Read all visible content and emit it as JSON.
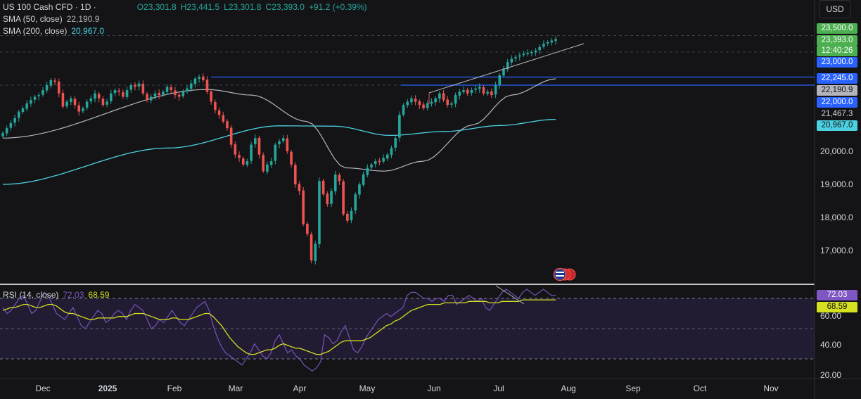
{
  "header": {
    "symbol": "US 100 Cash CFD · 1D ·",
    "open": "O23,301.8",
    "high": "H23,441.5",
    "low": "L23,301.8",
    "close": "C23,393.0",
    "change": "+91.2 (+0.39%)",
    "currency": "USD"
  },
  "indicators": {
    "sma50_label": "SMA (50, close)",
    "sma50_value": "22,190.9",
    "sma200_label": "SMA (200, close)",
    "sma200_value": "20,967.0",
    "rsi_label": "RSI (14, close)",
    "rsi_value": "72.03",
    "rsi_ma_value": "68.59"
  },
  "price_tags": {
    "p23500": "23,500.0",
    "last": "23,393.0",
    "countdown": "12:40:26",
    "p23000": "23,000.0",
    "p22245": "22,245.0",
    "sma50": "22,190.9",
    "p22000": "22,000.0",
    "p21467": "21,467.3",
    "sma200": "20,967.0",
    "rsi": "72.03",
    "rsi_ma": "68.59"
  },
  "price_axis": [
    "20,000.0",
    "19,000.0",
    "18,000.0",
    "17,000.0"
  ],
  "rsi_axis": [
    "60.00",
    "40.00",
    "20.00"
  ],
  "time_axis": [
    "Dec",
    "2025",
    "Feb",
    "Mar",
    "Apr",
    "May",
    "Jun",
    "Jul",
    "Aug",
    "Sep",
    "Oct",
    "Nov"
  ],
  "colors": {
    "up": "#26a69a",
    "down": "#ef5350",
    "sma50": "#b2b5be",
    "sma200": "#4dd0e1",
    "hline": "#2962ff",
    "rsi": "#7e57c2",
    "rsi_ma": "#d4e020",
    "last_price": "#4caf50"
  },
  "chart_data": {
    "type": "candlestick",
    "instrument": "US 100 Cash CFD",
    "timeframe": "1D",
    "x_range": [
      "Nov 2024",
      "Jul 2025"
    ],
    "y_range": [
      16300,
      23600
    ],
    "close_path": [
      [
        20550,
        20700,
        20850,
        21000,
        21200,
        21300,
        21450,
        21550,
        21650,
        21700,
        21850,
        22000,
        22150,
        22100,
        21750,
        21350,
        21500,
        21600,
        21400,
        21200,
        21300,
        21500,
        21600,
        21750,
        21600,
        21400,
        21500,
        21750,
        21850,
        21800,
        21650,
        21850,
        22000,
        21950,
        22050,
        21750,
        21550,
        21650,
        21750,
        21700,
        21800,
        21950,
        21850,
        21700,
        21650,
        21800,
        21900,
        22050,
        22200,
        22250,
        22150,
        21800,
        21500,
        21250,
        21100,
        20900,
        20700,
        20200,
        19900,
        19800,
        19600,
        19700,
        20200,
        20400,
        19900,
        19400,
        19600,
        19700,
        20200,
        20300,
        20400,
        20000,
        19600,
        19000,
        18800,
        17800,
        17500,
        16700,
        17200,
        19100,
        18700,
        18400,
        18800,
        19300,
        19100,
        18100,
        17900,
        18200,
        18700,
        19000,
        19300,
        19500,
        19600,
        19700,
        19700,
        19800,
        19900,
        20100,
        20400,
        21100,
        21400,
        21500,
        21600,
        21500,
        21400,
        21300,
        21450,
        21500,
        21600,
        21750,
        21550,
        21400,
        21450,
        21700,
        21800,
        21850,
        21750,
        21850,
        21900,
        21950,
        21750,
        21800,
        21700,
        22000,
        22300,
        22500,
        22700,
        22800,
        22850,
        22900,
        22950,
        22980,
        23000,
        23050,
        23150,
        23250,
        23300,
        23350,
        23393
      ]
    ],
    "sma50": {
      "start": 20400,
      "peak_feb": 21870,
      "low_may": 19400,
      "end": 22190.9
    },
    "sma200": {
      "start": 19000,
      "mid_mar": 20770,
      "may": 20480,
      "end": 20967
    },
    "levels": [
      22245,
      22000
    ],
    "rsi": {
      "last": 72.03,
      "ma_last": 68.59,
      "range": [
        20,
        80
      ],
      "path": [
        64,
        60,
        62,
        66,
        70,
        72,
        66,
        60,
        62,
        68,
        74,
        72,
        66,
        60,
        58,
        56,
        60,
        64,
        58,
        52,
        50,
        54,
        58,
        62,
        60,
        54,
        56,
        60,
        62,
        60,
        56,
        62,
        66,
        64,
        62,
        56,
        50,
        52,
        56,
        54,
        58,
        62,
        58,
        54,
        52,
        56,
        60,
        64,
        66,
        68,
        62,
        52,
        44,
        38,
        34,
        32,
        30,
        28,
        26,
        30,
        34,
        40,
        36,
        32,
        30,
        34,
        42,
        46,
        40,
        34,
        36,
        32,
        30,
        26,
        24,
        22,
        24,
        28,
        46,
        44,
        40,
        42,
        48,
        52,
        44,
        36,
        34,
        38,
        44,
        48,
        52,
        56,
        58,
        60,
        58,
        60,
        62,
        64,
        72,
        74,
        74,
        72,
        70,
        70,
        68,
        70,
        70,
        68,
        72,
        72,
        66,
        68,
        70,
        72,
        70,
        68,
        70,
        64,
        62,
        66,
        70,
        74,
        76,
        74,
        72,
        70,
        74,
        76,
        74,
        72,
        74,
        76,
        74,
        72,
        72
      ],
      "ma_path": [
        62,
        63,
        64,
        64,
        65,
        66,
        66,
        65,
        64,
        64,
        65,
        66,
        66,
        65,
        63,
        61,
        60,
        60,
        59,
        58,
        57,
        56,
        56,
        57,
        57,
        57,
        57,
        57,
        58,
        58,
        58,
        59,
        60,
        60,
        60,
        59,
        58,
        57,
        56,
        56,
        56,
        57,
        57,
        56,
        56,
        56,
        57,
        58,
        59,
        60,
        60,
        58,
        55,
        52,
        48,
        44,
        41,
        38,
        36,
        34,
        33,
        33,
        34,
        35,
        36,
        36,
        37,
        39,
        40,
        39,
        38,
        37,
        37,
        36,
        35,
        34,
        33,
        33,
        34,
        35,
        37,
        39,
        41,
        42,
        42,
        42,
        42,
        42,
        43,
        44,
        46,
        48,
        50,
        52,
        53,
        55,
        56,
        58,
        60,
        62,
        63,
        64,
        65,
        66,
        66,
        66,
        66,
        67,
        67,
        67,
        67,
        67,
        67,
        68,
        68,
        68,
        68,
        68,
        67,
        67,
        67,
        68,
        68,
        68,
        68,
        68,
        69,
        69,
        69,
        69,
        69,
        69,
        69,
        69,
        69
      ]
    }
  }
}
